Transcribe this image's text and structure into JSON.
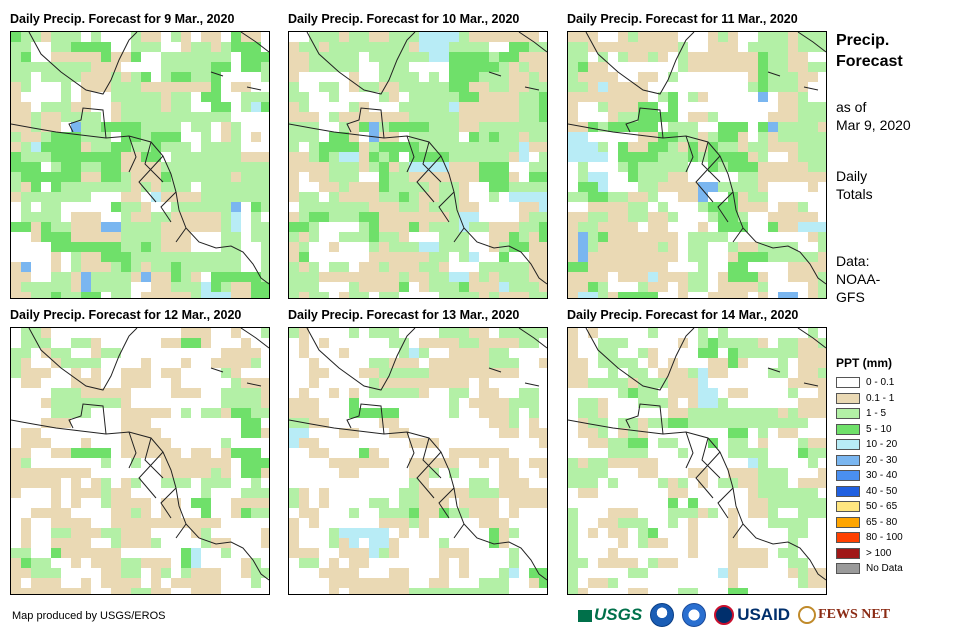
{
  "panels": [
    {
      "title": "Daily Precip. Forecast for 9 Mar., 2020",
      "variant": 0
    },
    {
      "title": "Daily Precip. Forecast for 10 Mar., 2020",
      "variant": 1
    },
    {
      "title": "Daily Precip. Forecast for 11 Mar., 2020",
      "variant": 2
    },
    {
      "title": "Daily Precip. Forecast for 12 Mar., 2020",
      "variant": 3
    },
    {
      "title": "Daily Precip. Forecast for 13 Mar., 2020",
      "variant": 4
    },
    {
      "title": "Daily Precip. Forecast for 14 Mar., 2020",
      "variant": 5
    }
  ],
  "sidebar": {
    "title_line1": "Precip.",
    "title_line2": "Forecast",
    "asof_line1": "as of",
    "asof_line2": "Mar 9, 2020",
    "totals_line1": "Daily",
    "totals_line2": "Totals",
    "source_line1": "Data:",
    "source_line2": "NOAA-",
    "source_line3": "GFS"
  },
  "legend": {
    "title": "PPT (mm)",
    "items": [
      {
        "label": "0 - 0.1",
        "color": "#ffffff"
      },
      {
        "label": "0.1 - 1",
        "color": "#ead9b4"
      },
      {
        "label": "1 - 5",
        "color": "#b3f0a6"
      },
      {
        "label": "5 - 10",
        "color": "#6fe06a"
      },
      {
        "label": "10 - 20",
        "color": "#b8ecf6"
      },
      {
        "label": "20 - 30",
        "color": "#7ab6f0"
      },
      {
        "label": "30 - 40",
        "color": "#4a8ff0"
      },
      {
        "label": "40 - 50",
        "color": "#2060e0"
      },
      {
        "label": "50 - 65",
        "color": "#ffe680"
      },
      {
        "label": "65 - 80",
        "color": "#ffa500"
      },
      {
        "label": "80 - 100",
        "color": "#ff4000"
      },
      {
        "label": "> 100",
        "color": "#a01818"
      },
      {
        "label": "No Data",
        "color": "#9a9a9a"
      }
    ]
  },
  "credit": "Map produced by USGS/EROS",
  "logos": {
    "usgs": "USGS",
    "usaid": "USAID",
    "fewsnet": "FEWS NET"
  }
}
